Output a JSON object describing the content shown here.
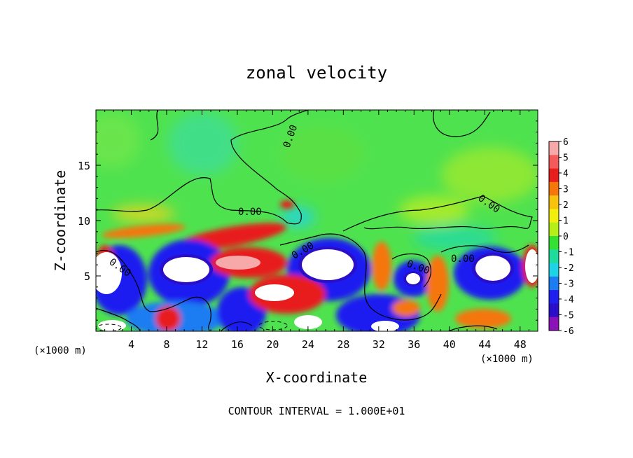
{
  "chart_data": {
    "type": "heatmap",
    "title": "zonal velocity",
    "xlabel": "X-coordinate",
    "ylabel": "Z-coordinate",
    "x_unit": "(×1000 m)",
    "x_unit_right": "(×1000 m)",
    "xlim": [
      0,
      50
    ],
    "ylim": [
      0,
      20
    ],
    "x_ticks": [
      4,
      8,
      12,
      16,
      20,
      24,
      28,
      32,
      36,
      40,
      44,
      48
    ],
    "y_ticks": [
      5,
      10,
      15
    ],
    "colorbar": {
      "levels": [
        6,
        5,
        4,
        3,
        2,
        1,
        0,
        -1,
        -2,
        -3,
        -4,
        -5,
        -6
      ],
      "colors": [
        "#f7a8a8",
        "#f55a5a",
        "#e81e1e",
        "#f5760a",
        "#f7c20c",
        "#f2ee0e",
        "#b6ee18",
        "#35e035",
        "#1fdc9c",
        "#1fd3e6",
        "#1c7cf2",
        "#1f1ff0",
        "#2a0ec8",
        "#8a12b8"
      ]
    },
    "contour_labels": [
      "0.00",
      "0.00",
      "0.00",
      "0.00",
      "0.00",
      "0.00",
      "0.00"
    ],
    "footer": "CONTOUR INTERVAL = 1.000E+01"
  }
}
